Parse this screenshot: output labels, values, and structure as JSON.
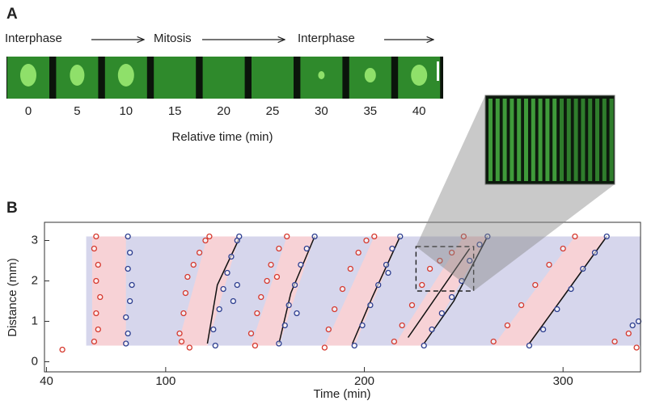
{
  "panel_a": {
    "label": "A",
    "phases": [
      "Interphase",
      "Mitosis",
      "Interphase"
    ],
    "times": [
      0,
      5,
      10,
      15,
      20,
      25,
      30,
      35,
      40
    ],
    "xlabel": "Relative time (min)"
  },
  "chart_data": {
    "type": "scatter",
    "panel_label": "B",
    "xlabel": "Time (min)",
    "ylabel": "Distance (mm)",
    "xlim": [
      39,
      339
    ],
    "ylim": [
      -0.25,
      3.45
    ],
    "xticks": [
      40,
      100,
      200,
      300
    ],
    "yticks": [
      0,
      1,
      2,
      3
    ],
    "band": {
      "x": [
        60,
        339
      ],
      "y": [
        0.4,
        3.1
      ],
      "color": "#d6d6ec"
    },
    "regions": [
      {
        "color": "#f7d2d6",
        "x": [
          63,
          63,
          80,
          80
        ],
        "y": [
          0.4,
          3.1,
          3.1,
          0.4
        ]
      },
      {
        "color": "#f7d2d6",
        "x": [
          106,
          121,
          137,
          121
        ],
        "y": [
          0.4,
          3.1,
          3.1,
          0.4
        ]
      },
      {
        "color": "#f7d2d6",
        "x": [
          143,
          161,
          175,
          157
        ],
        "y": [
          0.4,
          3.1,
          3.1,
          0.4
        ]
      },
      {
        "color": "#f7d2d6",
        "x": [
          180,
          205,
          218,
          195
        ],
        "y": [
          0.4,
          3.1,
          3.1,
          0.4
        ]
      },
      {
        "color": "#f7d2d6",
        "x": [
          215,
          250,
          262,
          230
        ],
        "y": [
          0.4,
          3.1,
          3.1,
          0.4
        ]
      },
      {
        "color": "#f7d2d6",
        "x": [
          265,
          306,
          322,
          283
        ],
        "y": [
          0.4,
          3.1,
          3.1,
          0.4
        ]
      }
    ],
    "series": [
      {
        "color": "#d63a2f",
        "x": [
          48,
          65,
          64,
          66,
          65,
          67,
          65,
          66,
          64,
          108,
          107,
          109,
          110,
          111,
          114,
          117,
          120,
          122,
          112,
          145,
          143,
          146,
          148,
          151,
          153,
          157,
          161,
          156,
          180,
          182,
          185,
          189,
          193,
          197,
          201,
          205,
          215,
          219,
          224,
          229,
          233,
          238,
          244,
          250,
          265,
          272,
          279,
          286,
          293,
          300,
          306,
          326,
          333,
          337
        ],
        "y": [
          0.3,
          3.1,
          2.8,
          2.4,
          2.0,
          1.6,
          1.2,
          0.8,
          0.5,
          0.5,
          0.7,
          1.2,
          1.7,
          2.1,
          2.4,
          2.7,
          3.0,
          3.1,
          0.35,
          0.4,
          0.7,
          1.2,
          1.6,
          2.0,
          2.4,
          2.8,
          3.1,
          2.1,
          0.35,
          0.8,
          1.3,
          1.8,
          2.3,
          2.7,
          3.0,
          3.1,
          0.5,
          0.9,
          1.4,
          1.9,
          2.3,
          2.5,
          2.7,
          3.1,
          0.5,
          0.9,
          1.4,
          1.9,
          2.4,
          2.8,
          3.1,
          0.5,
          0.7,
          0.35
        ]
      },
      {
        "color": "#2e3f90",
        "x": [
          81,
          82,
          81,
          83,
          82,
          80,
          81,
          80,
          125,
          124,
          127,
          129,
          131,
          133,
          136,
          137,
          136,
          134,
          157,
          160,
          162,
          165,
          168,
          171,
          175,
          166,
          195,
          199,
          203,
          207,
          211,
          214,
          218,
          212,
          230,
          234,
          239,
          244,
          249,
          253,
          258,
          262,
          283,
          290,
          297,
          304,
          310,
          316,
          322,
          335,
          338
        ],
        "y": [
          3.1,
          2.7,
          2.3,
          1.9,
          1.5,
          1.1,
          0.7,
          0.45,
          0.4,
          0.8,
          1.3,
          1.8,
          2.2,
          2.6,
          3.0,
          3.1,
          1.9,
          1.5,
          0.45,
          0.9,
          1.4,
          1.9,
          2.4,
          2.8,
          3.1,
          1.2,
          0.4,
          0.9,
          1.4,
          1.9,
          2.4,
          2.8,
          3.1,
          2.2,
          0.4,
          0.8,
          1.2,
          1.6,
          2.0,
          2.5,
          2.9,
          3.1,
          0.4,
          0.8,
          1.3,
          1.8,
          2.3,
          2.7,
          3.1,
          0.9,
          1.0
        ]
      }
    ],
    "lines": [
      {
        "color": "#111111",
        "x": [
          121,
          126,
          137
        ],
        "y": [
          0.45,
          1.9,
          3.05
        ]
      },
      {
        "color": "#111111",
        "x": [
          157,
          163,
          175
        ],
        "y": [
          0.45,
          1.7,
          3.1
        ]
      },
      {
        "color": "#111111",
        "x": [
          194,
          204,
          218
        ],
        "y": [
          0.45,
          1.6,
          3.1
        ]
      },
      {
        "color": "#111111",
        "x": [
          222,
          253
        ],
        "y": [
          0.6,
          2.8
        ]
      },
      {
        "color": "#111111",
        "x": [
          230,
          245,
          262
        ],
        "y": [
          0.45,
          1.5,
          3.1
        ]
      },
      {
        "color": "#111111",
        "x": [
          283,
          300,
          322
        ],
        "y": [
          0.45,
          1.6,
          3.1
        ]
      }
    ],
    "zoom_box": {
      "x": [
        226,
        255
      ],
      "y": [
        1.75,
        2.85
      ]
    }
  }
}
